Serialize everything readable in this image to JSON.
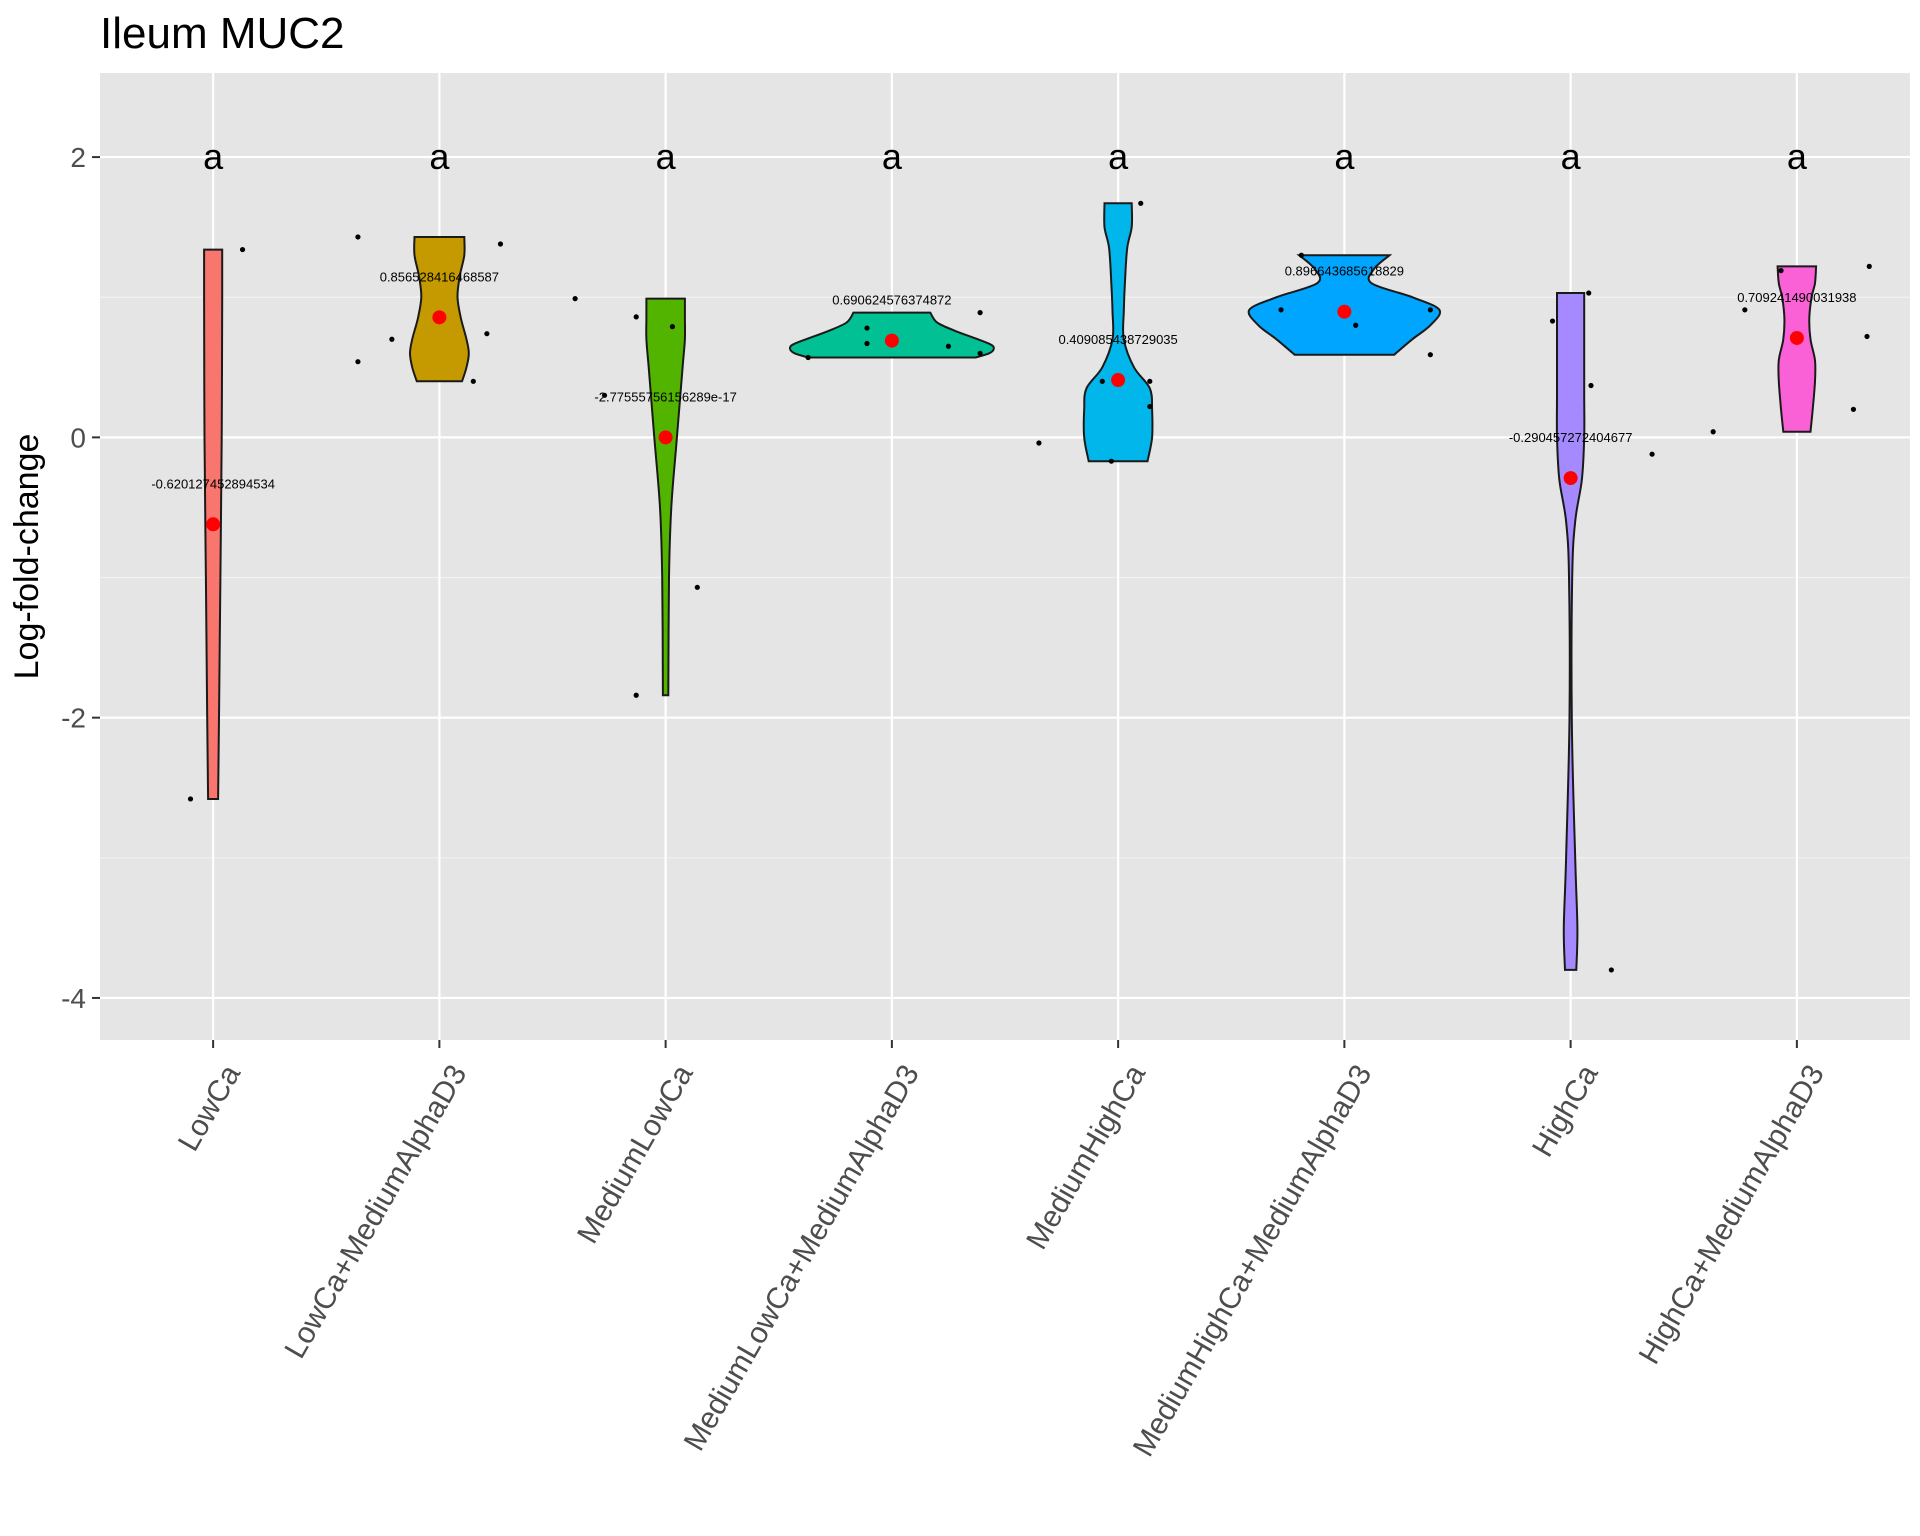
{
  "chart_data": {
    "type": "violin",
    "title": "Ileum MUC2",
    "xlabel": "",
    "ylabel": "Log-fold-change",
    "ylim": [
      -4.3,
      2.6
    ],
    "yticks": [
      -4,
      -2,
      0,
      2
    ],
    "ytick_labels": [
      "-4",
      "-2",
      "0",
      "2"
    ],
    "grid": true,
    "legend": "none",
    "categories": [
      "LowCa",
      "LowCa+MediumAlphaD3",
      "MediumLowCa",
      "MediumLowCa+MediumAlphaD3",
      "MediumHighCa",
      "MediumHighCa+MediumAlphaD3",
      "HighCa",
      "HighCa+MediumAlphaD3"
    ],
    "letters": [
      "a",
      "a",
      "a",
      "a",
      "a",
      "a",
      "a",
      "a"
    ],
    "letter_y": 2.0,
    "colors": [
      "#F8766D",
      "#C49A00",
      "#53B400",
      "#00C094",
      "#00B6EB",
      "#00A5FF",
      "#A58AFF",
      "#FB61D7"
    ],
    "means": [
      -0.620127452894534,
      0.856528416468587,
      -2.77555756156289e-17,
      0.690624576374872,
      0.409085438729035,
      0.896643685618829,
      -0.290457272404677,
      0.709241490031938
    ],
    "mean_labels": [
      "-0.620127452894534",
      "0.856528416468587",
      "-2.77555756156289e-17",
      "0.690624576374872",
      "0.409085438729035",
      "0.896643685618829",
      "-0.290457272404677",
      "0.709241490031938"
    ],
    "groups": [
      {
        "name": "LowCa",
        "points": [
          [
            -0.1,
            -2.58
          ],
          [
            0.13,
            1.34
          ]
        ],
        "violin": [
          [
            -2.58,
            0.022
          ],
          [
            -2.0,
            0.026
          ],
          [
            -1.0,
            0.032
          ],
          [
            0.0,
            0.038
          ],
          [
            1.0,
            0.04
          ],
          [
            1.34,
            0.04
          ]
        ]
      },
      {
        "name": "LowCa+MediumAlphaD3",
        "points": [
          [
            -0.36,
            1.43
          ],
          [
            -0.36,
            0.54
          ],
          [
            -0.21,
            0.7
          ],
          [
            0.15,
            0.4
          ],
          [
            0.21,
            0.74
          ],
          [
            0.27,
            1.38
          ]
        ],
        "violin": [
          [
            0.4,
            0.1
          ],
          [
            0.5,
            0.12
          ],
          [
            0.6,
            0.13
          ],
          [
            0.7,
            0.12
          ],
          [
            0.85,
            0.095
          ],
          [
            1.0,
            0.08
          ],
          [
            1.15,
            0.09
          ],
          [
            1.3,
            0.11
          ],
          [
            1.43,
            0.11
          ]
        ]
      },
      {
        "name": "MediumLowCa",
        "points": [
          [
            -0.4,
            0.99
          ],
          [
            -0.27,
            0.3
          ],
          [
            -0.13,
            0.86
          ],
          [
            -0.13,
            -1.84
          ],
          [
            0.03,
            0.79
          ],
          [
            0.14,
            -1.07
          ]
        ],
        "violin": [
          [
            -1.84,
            0.012
          ],
          [
            -1.0,
            0.015
          ],
          [
            -0.5,
            0.025
          ],
          [
            0.0,
            0.05
          ],
          [
            0.5,
            0.075
          ],
          [
            0.7,
            0.085
          ],
          [
            0.85,
            0.085
          ],
          [
            0.99,
            0.085
          ]
        ]
      },
      {
        "name": "MediumLowCa+MediumAlphaD3",
        "points": [
          [
            -0.37,
            0.57
          ],
          [
            -0.11,
            0.67
          ],
          [
            -0.11,
            0.78
          ],
          [
            0.25,
            0.65
          ],
          [
            0.39,
            0.6
          ],
          [
            0.39,
            0.89
          ]
        ],
        "violin": [
          [
            0.57,
            0.37
          ],
          [
            0.6,
            0.43
          ],
          [
            0.63,
            0.45
          ],
          [
            0.66,
            0.44
          ],
          [
            0.7,
            0.38
          ],
          [
            0.76,
            0.28
          ],
          [
            0.82,
            0.2
          ],
          [
            0.89,
            0.17
          ]
        ]
      },
      {
        "name": "MediumHighCa",
        "points": [
          [
            -0.35,
            -0.04
          ],
          [
            -0.07,
            0.4
          ],
          [
            -0.03,
            -0.17
          ],
          [
            0.1,
            1.67
          ],
          [
            0.14,
            0.4
          ],
          [
            0.14,
            0.22
          ]
        ],
        "violin": [
          [
            -0.17,
            0.13
          ],
          [
            0.0,
            0.15
          ],
          [
            0.2,
            0.15
          ],
          [
            0.35,
            0.14
          ],
          [
            0.5,
            0.07
          ],
          [
            0.7,
            0.025
          ],
          [
            0.9,
            0.025
          ],
          [
            1.1,
            0.03
          ],
          [
            1.35,
            0.04
          ],
          [
            1.5,
            0.06
          ],
          [
            1.67,
            0.06
          ]
        ]
      },
      {
        "name": "MediumHighCa+MediumAlphaD3",
        "points": [
          [
            -0.28,
            0.91
          ],
          [
            -0.19,
            1.3
          ],
          [
            0.05,
            0.8
          ],
          [
            0.38,
            0.91
          ],
          [
            0.38,
            0.59
          ]
        ],
        "violin": [
          [
            0.59,
            0.22
          ],
          [
            0.7,
            0.3
          ],
          [
            0.8,
            0.38
          ],
          [
            0.91,
            0.42
          ],
          [
            1.0,
            0.3
          ],
          [
            1.1,
            0.12
          ],
          [
            1.2,
            0.13
          ],
          [
            1.3,
            0.2
          ]
        ]
      },
      {
        "name": "HighCa",
        "points": [
          [
            -0.08,
            0.83
          ],
          [
            0.08,
            1.03
          ],
          [
            0.09,
            0.37
          ],
          [
            0.18,
            -3.8
          ],
          [
            0.36,
            -0.12
          ]
        ],
        "violin": [
          [
            -3.8,
            0.025
          ],
          [
            -3.5,
            0.03
          ],
          [
            -3.0,
            0.02
          ],
          [
            -2.0,
            0.005
          ],
          [
            -1.0,
            0.007
          ],
          [
            -0.6,
            0.02
          ],
          [
            -0.3,
            0.05
          ],
          [
            0.0,
            0.06
          ],
          [
            0.3,
            0.06
          ],
          [
            0.6,
            0.06
          ],
          [
            1.03,
            0.06
          ]
        ]
      },
      {
        "name": "HighCa+MediumAlphaD3",
        "points": [
          [
            -0.37,
            0.04
          ],
          [
            -0.23,
            0.91
          ],
          [
            -0.07,
            1.19
          ],
          [
            0.25,
            0.2
          ],
          [
            0.31,
            0.72
          ],
          [
            0.32,
            1.22
          ]
        ],
        "violin": [
          [
            0.04,
            0.06
          ],
          [
            0.2,
            0.07
          ],
          [
            0.4,
            0.08
          ],
          [
            0.55,
            0.08
          ],
          [
            0.7,
            0.06
          ],
          [
            0.85,
            0.055
          ],
          [
            1.0,
            0.065
          ],
          [
            1.1,
            0.08
          ],
          [
            1.22,
            0.085
          ]
        ]
      }
    ]
  }
}
